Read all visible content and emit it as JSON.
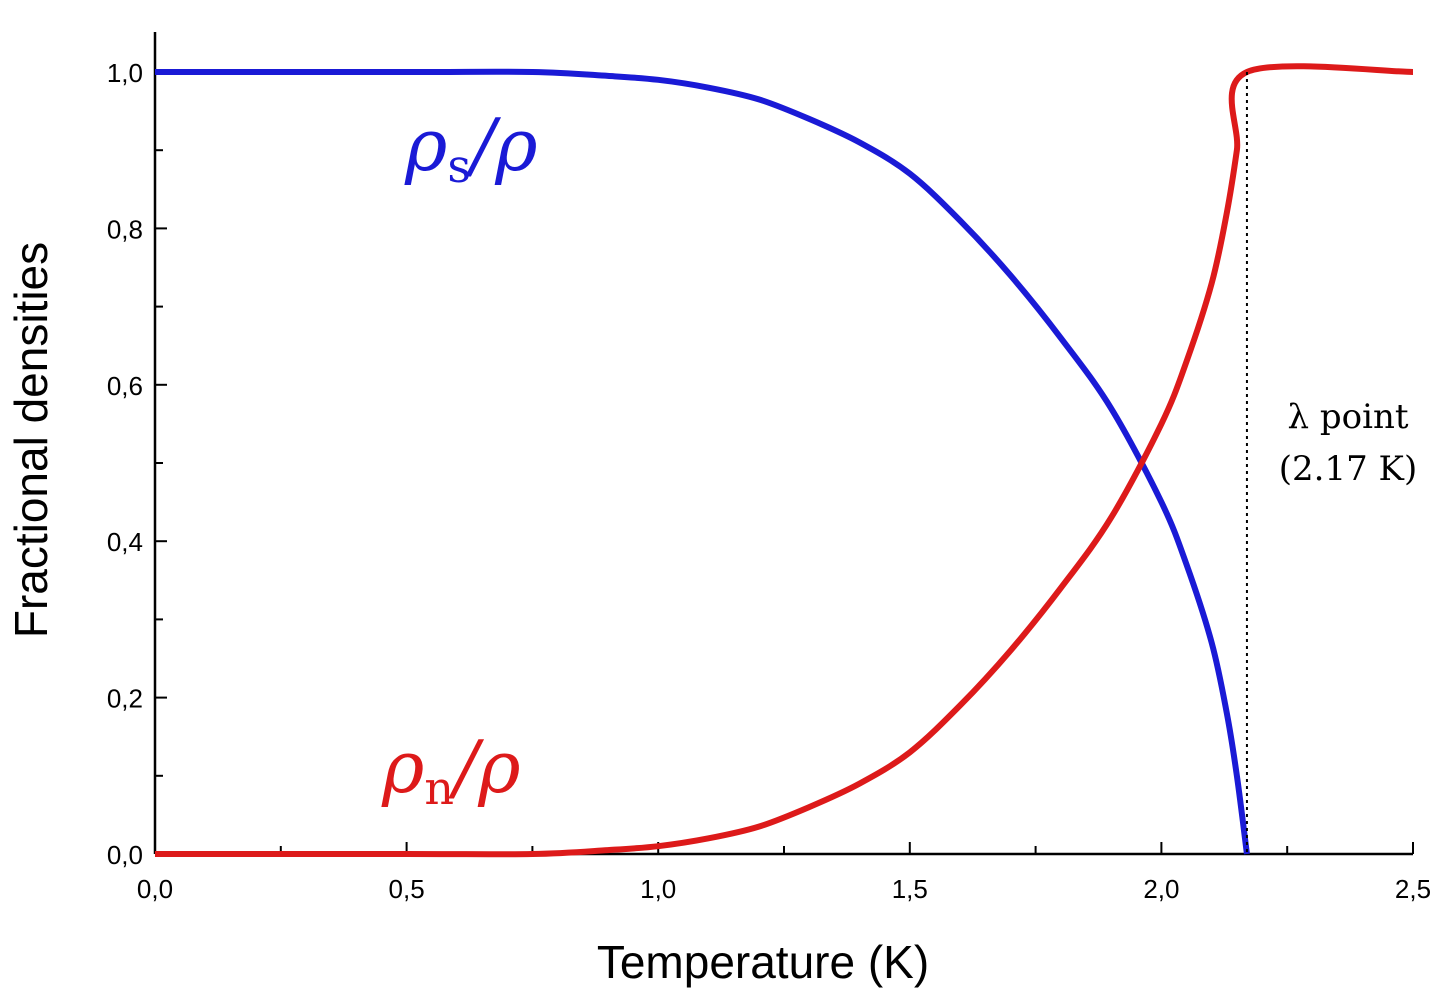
{
  "chart_data": {
    "type": "line",
    "title": "",
    "xlabel": "Temperature (K)",
    "ylabel": "Fractional densities",
    "xlim": [
      0,
      2.5
    ],
    "ylim": [
      0,
      1.0
    ],
    "xticks": [
      0,
      0.5,
      1.0,
      1.5,
      2.0,
      2.5
    ],
    "xtick_labels": [
      "0,0",
      "0,5",
      "1,0",
      "1,5",
      "2,0",
      "2,5"
    ],
    "yticks": [
      0,
      0.2,
      0.4,
      0.6,
      0.8,
      1.0
    ],
    "ytick_labels": [
      "0,0",
      "0,2",
      "0,4",
      "0,6",
      "0,8",
      "1,0"
    ],
    "grid": false,
    "series": [
      {
        "label_base": "ρ",
        "label_sub": "s",
        "label_tail": "/ρ",
        "color": "#1a1ad6",
        "x": [
          0,
          0.5,
          0.75,
          0.9,
          1.0,
          1.1,
          1.2,
          1.3,
          1.4,
          1.5,
          1.6,
          1.7,
          1.8,
          1.9,
          2.0,
          2.05,
          2.1,
          2.13,
          2.15,
          2.17
        ],
        "y": [
          1.0,
          1.0,
          1.0,
          0.995,
          0.99,
          0.98,
          0.965,
          0.94,
          0.91,
          0.87,
          0.81,
          0.74,
          0.66,
          0.57,
          0.45,
          0.37,
          0.27,
          0.18,
          0.1,
          0.0
        ]
      },
      {
        "label_base": "ρ",
        "label_sub": "n",
        "label_tail": "/ρ",
        "color": "#dd1a1a",
        "x": [
          0,
          0.5,
          0.75,
          0.9,
          1.0,
          1.1,
          1.2,
          1.3,
          1.4,
          1.5,
          1.6,
          1.7,
          1.8,
          1.9,
          2.0,
          2.05,
          2.1,
          2.13,
          2.15,
          2.17,
          2.5
        ],
        "y": [
          0.0,
          0.0,
          0.0,
          0.005,
          0.01,
          0.02,
          0.035,
          0.06,
          0.09,
          0.13,
          0.19,
          0.26,
          0.34,
          0.43,
          0.55,
          0.63,
          0.73,
          0.82,
          0.9,
          1.0,
          1.0
        ]
      }
    ],
    "annotations": {
      "lambda_x": 2.17,
      "lambda_line1": "λ point",
      "lambda_line2": "(2.17 K)"
    }
  }
}
